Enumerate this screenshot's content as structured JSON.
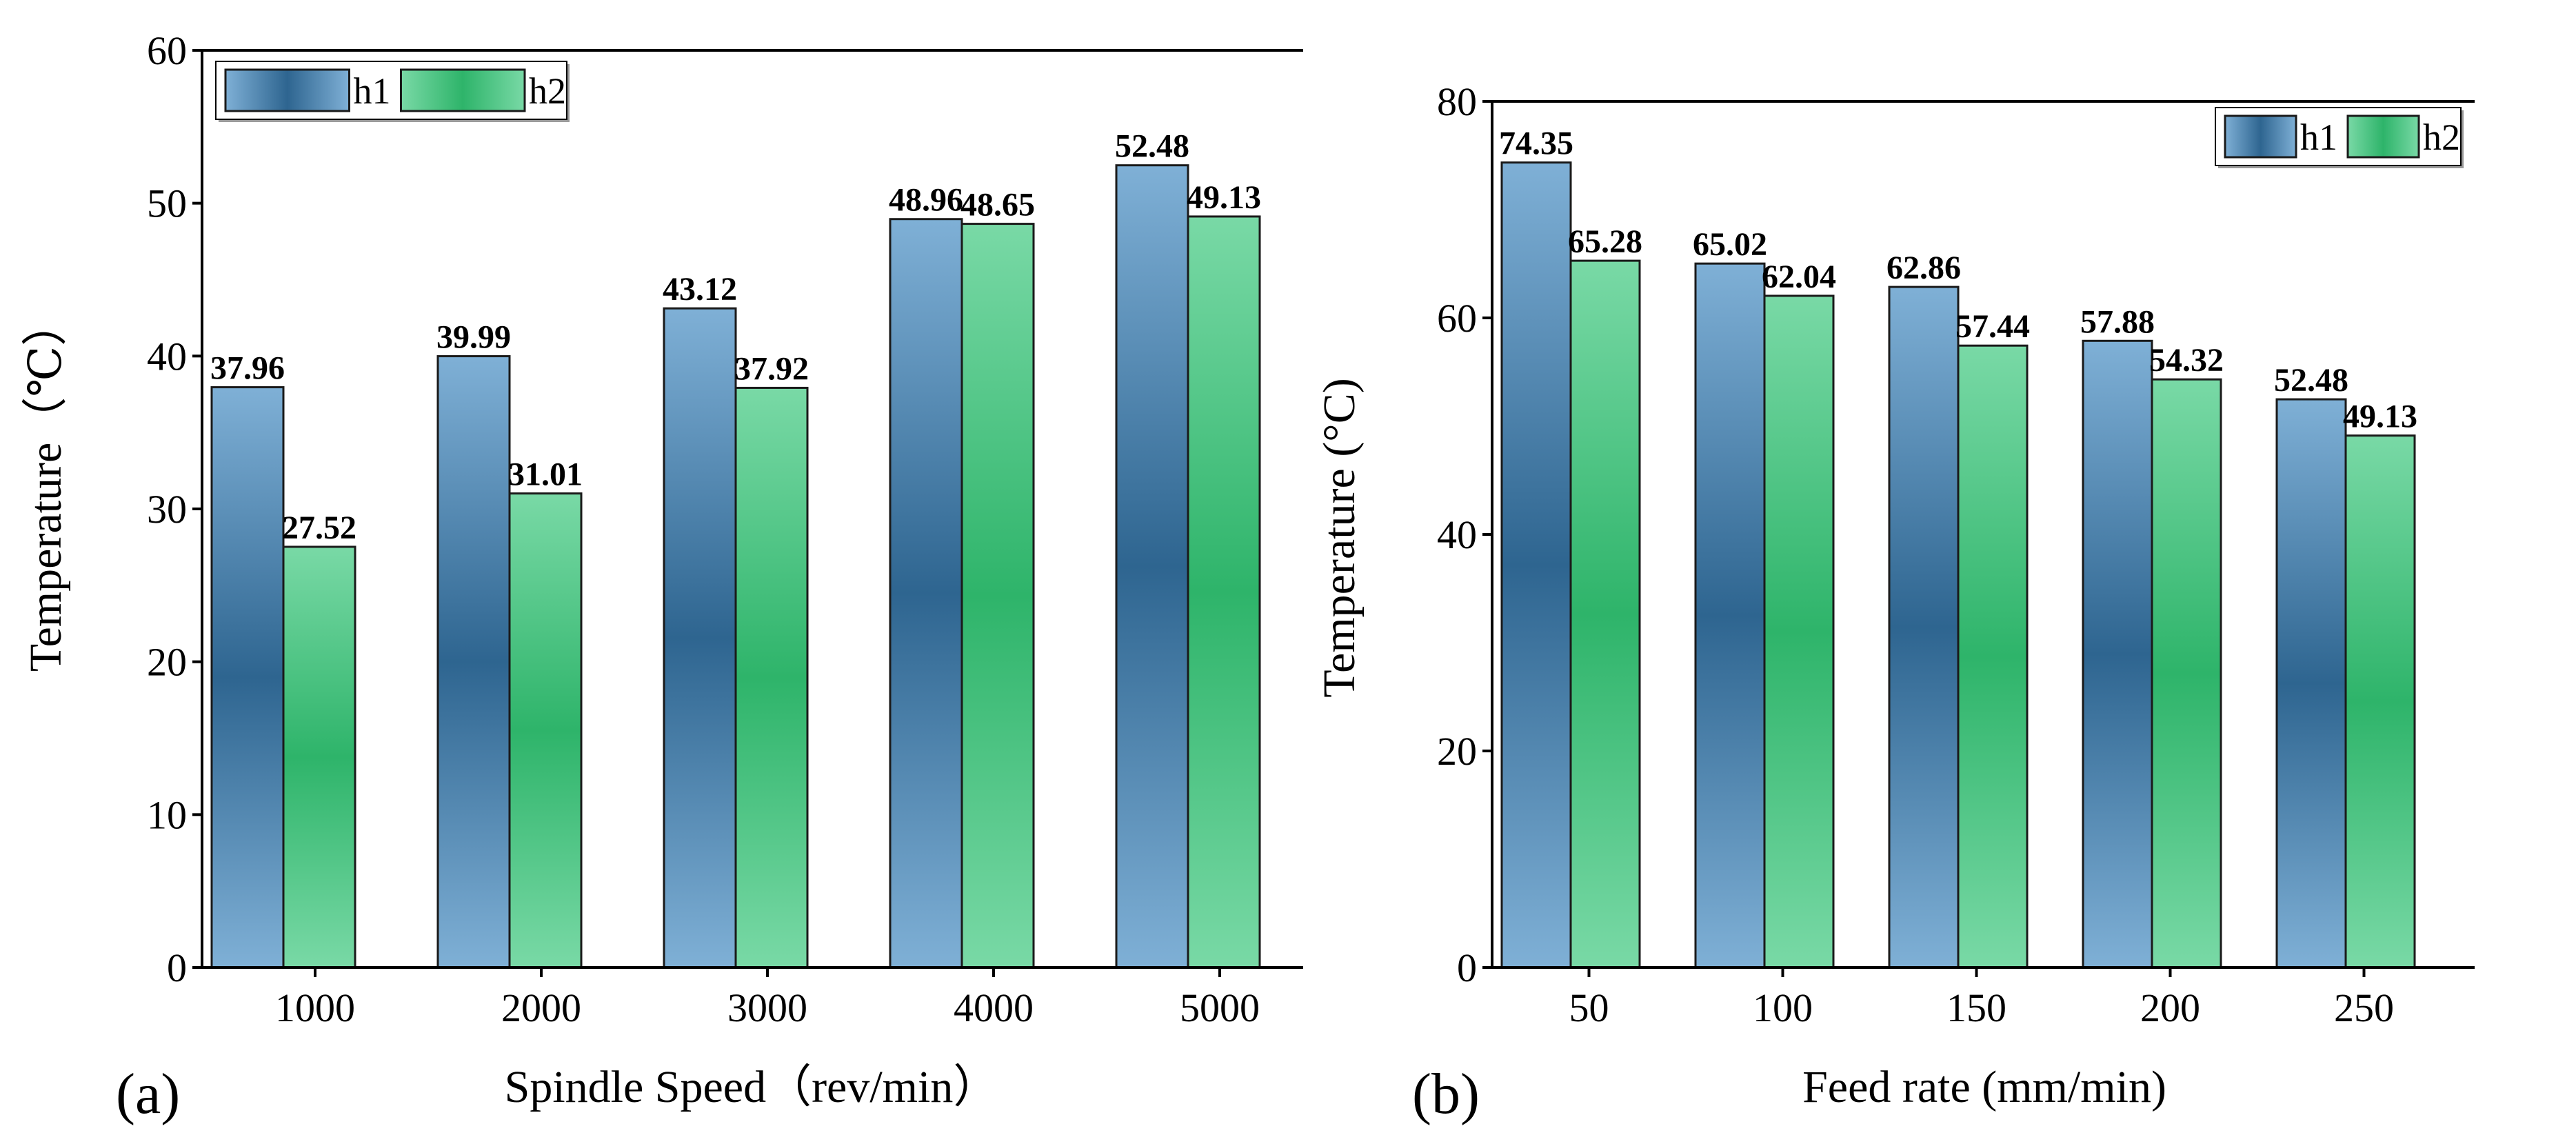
{
  "chart_data": [
    {
      "type": "bar",
      "panel_label": "(a)",
      "categories": [
        "1000",
        "2000",
        "3000",
        "4000",
        "5000"
      ],
      "series": [
        {
          "name": "h1",
          "values": [
            37.96,
            39.99,
            43.12,
            48.96,
            52.48
          ],
          "labels": [
            "37.96",
            "39.99",
            "43.12",
            "48.96",
            "52.48"
          ]
        },
        {
          "name": "h2",
          "values": [
            27.52,
            31.01,
            37.92,
            48.65,
            49.13
          ],
          "labels": [
            "27.52",
            "31.01",
            "37.92",
            "48.65",
            "49.13"
          ]
        }
      ],
      "xlabel": "Spindle Speed（rev/min）",
      "ylabel": "Temperature（℃）",
      "ylim": [
        0,
        60
      ],
      "yticks": [
        "0",
        "10",
        "20",
        "30",
        "40",
        "50",
        "60"
      ],
      "legend": [
        "h1",
        "h2"
      ],
      "legend_position": "top-left",
      "grid": false
    },
    {
      "type": "bar",
      "panel_label": "(b)",
      "categories": [
        "50",
        "100",
        "150",
        "200",
        "250"
      ],
      "series": [
        {
          "name": "h1",
          "values": [
            74.35,
            65.02,
            62.86,
            57.88,
            52.48
          ],
          "labels": [
            "74.35",
            "65.02",
            "62.86",
            "57.88",
            "52.48"
          ]
        },
        {
          "name": "h2",
          "values": [
            65.28,
            62.04,
            57.44,
            54.32,
            49.13
          ],
          "labels": [
            "65.28",
            "62.04",
            "57.44",
            "54.32",
            "49.13"
          ]
        }
      ],
      "xlabel": "Feed rate (mm/min)",
      "ylabel": "Temperature (°C)",
      "ylim": [
        0,
        80
      ],
      "yticks": [
        "0",
        "20",
        "40",
        "60",
        "80"
      ],
      "legend": [
        "h1",
        "h2"
      ],
      "legend_position": "top-right",
      "grid": false
    }
  ],
  "colors": {
    "h1_light": "#7fb0d6",
    "h1_dark": "#2e6590",
    "h2_light": "#79d9a6",
    "h2_dark": "#2eb46a",
    "outline": "#1a1a1a"
  }
}
